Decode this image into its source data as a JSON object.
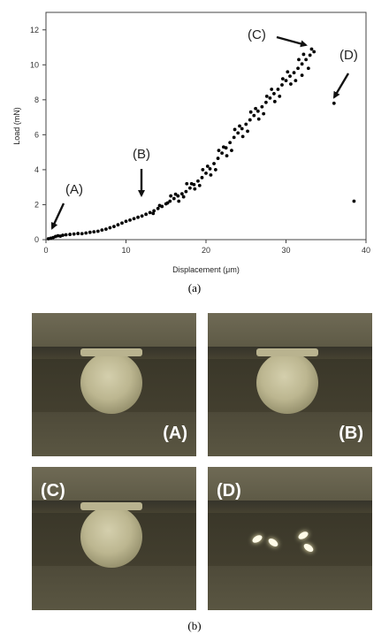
{
  "chart_data": {
    "type": "scatter",
    "title": "",
    "xlabel": "Displacement (μm)",
    "ylabel": "Load (mN)",
    "xlim": [
      0,
      40
    ],
    "ylim": [
      0,
      13
    ],
    "xticks": [
      "0",
      "10",
      "20",
      "30",
      "40"
    ],
    "yticks": [
      "0",
      "2",
      "4",
      "6",
      "8",
      "10",
      "12"
    ],
    "grid": false,
    "legend": "none",
    "marker_color": "#000000",
    "series": [
      {
        "points": [
          [
            0.3,
            0.05
          ],
          [
            0.6,
            0.08
          ],
          [
            0.9,
            0.12
          ],
          [
            1.2,
            0.18
          ],
          [
            1.5,
            0.22
          ],
          [
            1.8,
            0.2
          ],
          [
            2.1,
            0.25
          ],
          [
            2.5,
            0.28
          ],
          [
            3.0,
            0.3
          ],
          [
            3.5,
            0.32
          ],
          [
            4.0,
            0.35
          ],
          [
            4.5,
            0.34
          ],
          [
            5.0,
            0.38
          ],
          [
            5.5,
            0.42
          ],
          [
            6.0,
            0.45
          ],
          [
            6.5,
            0.48
          ],
          [
            7.0,
            0.55
          ],
          [
            7.5,
            0.6
          ],
          [
            8.0,
            0.68
          ],
          [
            8.5,
            0.75
          ],
          [
            9.0,
            0.85
          ],
          [
            9.5,
            0.95
          ],
          [
            10.0,
            1.05
          ],
          [
            10.5,
            1.12
          ],
          [
            11.0,
            1.2
          ],
          [
            11.5,
            1.28
          ],
          [
            12.0,
            1.35
          ],
          [
            12.5,
            1.45
          ],
          [
            13.0,
            1.55
          ],
          [
            13.5,
            1.65
          ],
          [
            14.0,
            1.78
          ],
          [
            14.5,
            1.9
          ],
          [
            15.0,
            2.05
          ],
          [
            15.5,
            2.2
          ],
          [
            16.0,
            2.35
          ],
          [
            16.5,
            2.5
          ],
          [
            17.0,
            2.62
          ],
          [
            17.5,
            2.75
          ],
          [
            18.0,
            2.95
          ],
          [
            18.5,
            3.15
          ],
          [
            19.0,
            3.35
          ],
          [
            19.5,
            3.55
          ],
          [
            20.0,
            3.8
          ],
          [
            20.5,
            4.05
          ],
          [
            21.0,
            4.35
          ],
          [
            21.5,
            4.65
          ],
          [
            22.0,
            4.95
          ],
          [
            22.5,
            5.25
          ],
          [
            23.0,
            5.55
          ],
          [
            23.5,
            5.85
          ],
          [
            24.0,
            6.1
          ],
          [
            24.5,
            6.35
          ],
          [
            25.0,
            6.6
          ],
          [
            25.5,
            6.85
          ],
          [
            26.0,
            7.1
          ],
          [
            26.5,
            7.35
          ],
          [
            27.0,
            7.6
          ],
          [
            27.5,
            7.85
          ],
          [
            28.0,
            8.1
          ],
          [
            28.5,
            8.35
          ],
          [
            29.0,
            8.6
          ],
          [
            29.5,
            8.85
          ],
          [
            30.0,
            9.1
          ],
          [
            30.5,
            9.35
          ],
          [
            31.0,
            9.55
          ],
          [
            31.5,
            9.8
          ],
          [
            32.0,
            10.05
          ],
          [
            32.5,
            10.3
          ],
          [
            33.0,
            10.55
          ],
          [
            33.5,
            10.75
          ],
          [
            14.2,
            1.95
          ],
          [
            15.2,
            2.1
          ],
          [
            16.2,
            2.6
          ],
          [
            17.2,
            2.45
          ],
          [
            18.2,
            3.2
          ],
          [
            19.2,
            3.1
          ],
          [
            20.2,
            4.2
          ],
          [
            21.2,
            4.0
          ],
          [
            22.2,
            5.3
          ],
          [
            23.2,
            5.1
          ],
          [
            24.2,
            6.5
          ],
          [
            25.2,
            6.2
          ],
          [
            26.2,
            7.5
          ],
          [
            27.2,
            7.2
          ],
          [
            28.2,
            8.6
          ],
          [
            29.2,
            8.2
          ],
          [
            30.2,
            9.6
          ],
          [
            31.2,
            9.1
          ],
          [
            32.2,
            10.6
          ],
          [
            32.8,
            9.8
          ],
          [
            33.2,
            10.9
          ],
          [
            32.0,
            9.4
          ],
          [
            31.6,
            10.3
          ],
          [
            30.6,
            8.9
          ],
          [
            29.6,
            9.2
          ],
          [
            28.6,
            7.9
          ],
          [
            27.6,
            8.2
          ],
          [
            26.6,
            6.9
          ],
          [
            25.6,
            7.3
          ],
          [
            24.6,
            5.9
          ],
          [
            23.6,
            6.3
          ],
          [
            22.6,
            4.8
          ],
          [
            21.6,
            5.1
          ],
          [
            20.6,
            3.7
          ],
          [
            19.6,
            4.0
          ],
          [
            18.6,
            2.9
          ],
          [
            17.6,
            3.2
          ],
          [
            16.6,
            2.2
          ],
          [
            15.6,
            2.5
          ],
          [
            13.4,
            1.5
          ],
          [
            36.0,
            7.8
          ],
          [
            38.5,
            2.2
          ]
        ]
      }
    ],
    "annotations": [
      {
        "text": "(A)",
        "x": 0.7,
        "y": 0.25
      },
      {
        "text": "(B)",
        "x": 12.0,
        "y": 1.35
      },
      {
        "text": "(C)",
        "x": 33.2,
        "y": 10.9
      },
      {
        "text": "(D)",
        "x": 36.0,
        "y": 7.8
      }
    ]
  },
  "captions": {
    "a": "(a)",
    "b": "(b)"
  },
  "photos": [
    {
      "label": "(A)",
      "state": "intact"
    },
    {
      "label": "(B)",
      "state": "intact"
    },
    {
      "label": "(C)",
      "state": "intact"
    },
    {
      "label": "(D)",
      "state": "fractured"
    }
  ]
}
